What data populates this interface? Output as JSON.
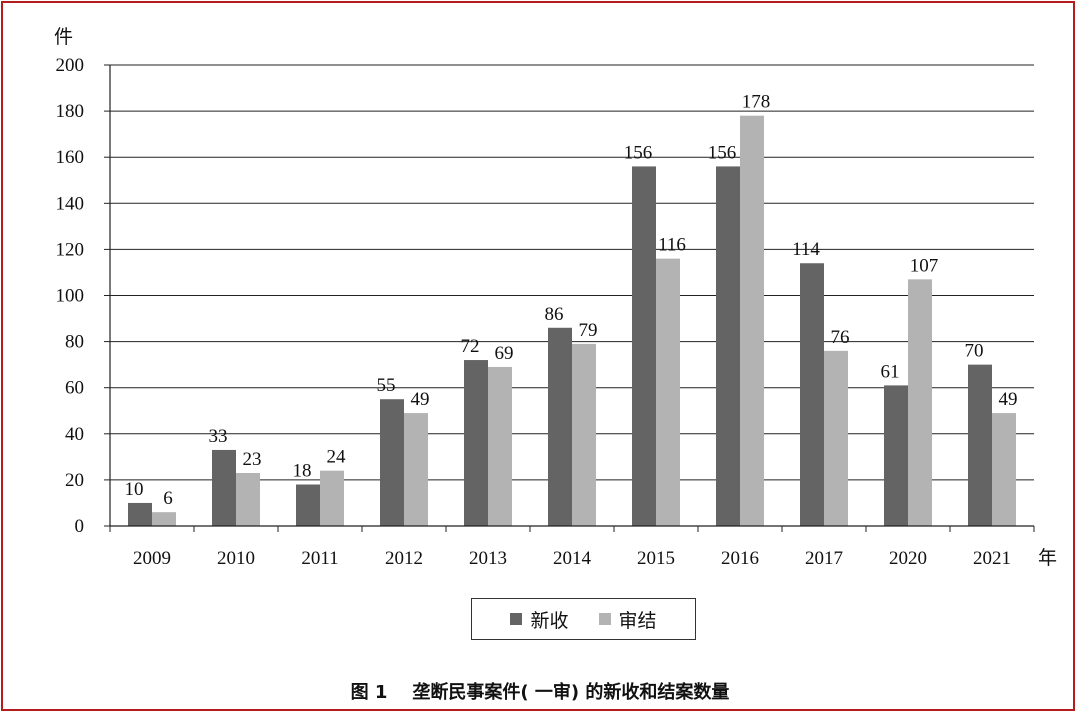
{
  "chart_data": {
    "type": "bar",
    "categories": [
      "2009",
      "2010",
      "2011",
      "2012",
      "2013",
      "2014",
      "2015",
      "2016",
      "2017",
      "2020",
      "2021"
    ],
    "series": [
      {
        "name": "新收",
        "color": "#646464",
        "values": [
          10,
          33,
          18,
          55,
          72,
          86,
          156,
          156,
          114,
          61,
          70
        ]
      },
      {
        "name": "审结",
        "color": "#b3b3b3",
        "values": [
          6,
          23,
          24,
          49,
          69,
          79,
          116,
          178,
          76,
          107,
          49
        ]
      }
    ],
    "ylabel": "件",
    "xlabel": "年",
    "ylim": [
      0,
      200
    ],
    "yticks": [
      0,
      20,
      40,
      60,
      80,
      100,
      120,
      140,
      160,
      180,
      200
    ],
    "grid": true,
    "legend_position": "bottom-center",
    "caption": "图 1    垄断民事案件( 一审) 的新收和结案数量"
  }
}
